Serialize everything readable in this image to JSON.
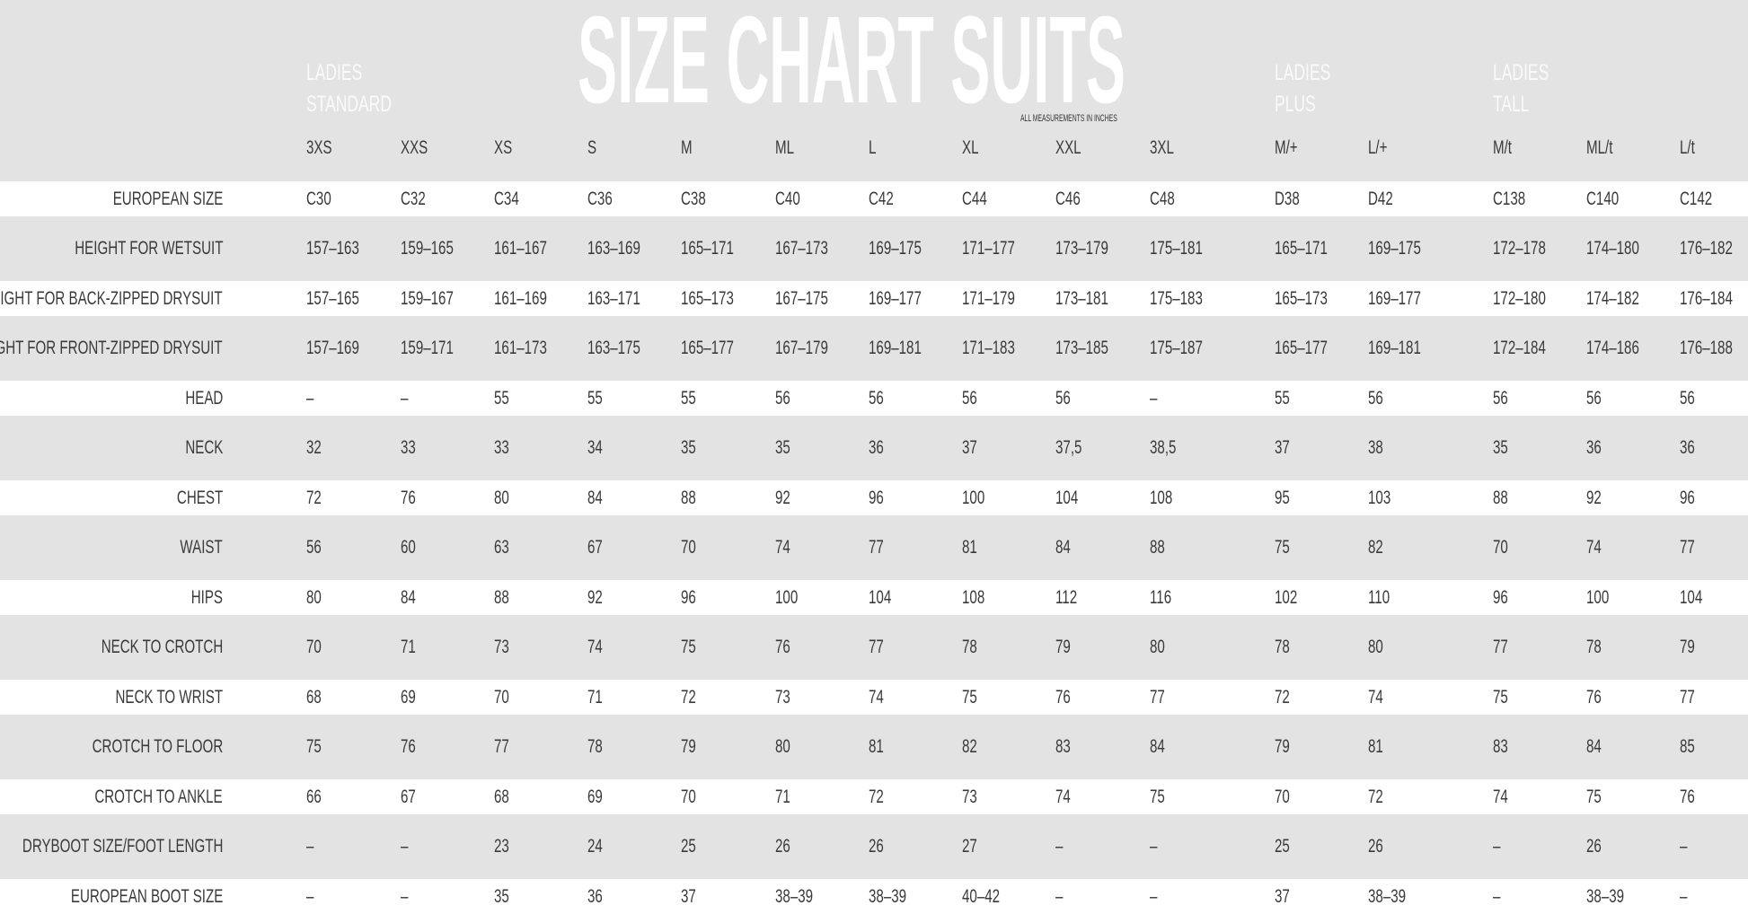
{
  "title": "SIZE CHART SUITS",
  "units_note": "ALL MEASUREMENTS IN INCHES",
  "groups": [
    {
      "line1": "LADIES",
      "line2": "STANDARD"
    },
    {
      "line1": "LADIES",
      "line2": "PLUS"
    },
    {
      "line1": "LADIES",
      "line2": "TALL"
    }
  ],
  "sizes": [
    "3XS",
    "XXS",
    "XS",
    "S",
    "M",
    "ML",
    "L",
    "XL",
    "XXL",
    "3XL",
    "M/+",
    "L/+",
    "M/t",
    "ML/t",
    "L/t"
  ],
  "rows": [
    {
      "label": "EUROPEAN SIZE",
      "values": [
        "C30",
        "C32",
        "C34",
        "C36",
        "C38",
        "C40",
        "C42",
        "C44",
        "C46",
        "C48",
        "D38",
        "D42",
        "C138",
        "C140",
        "C142"
      ]
    },
    {
      "label": "HEIGHT FOR WETSUIT",
      "values": [
        "157–163",
        "159–165",
        "161–167",
        "163–169",
        "165–171",
        "167–173",
        "169–175",
        "171–177",
        "173–179",
        "175–181",
        "165–171",
        "169–175",
        "172–178",
        "174–180",
        "176–182"
      ]
    },
    {
      "label": "HEIGHT FOR BACK-ZIPPED DRYSUIT",
      "values": [
        "157–165",
        "159–167",
        "161–169",
        "163–171",
        "165–173",
        "167–175",
        "169–177",
        "171–179",
        "173–181",
        "175–183",
        "165–173",
        "169–177",
        "172–180",
        "174–182",
        "176–184"
      ]
    },
    {
      "label": "HEIGHT FOR FRONT-ZIPPED DRYSUIT",
      "values": [
        "157–169",
        "159–171",
        "161–173",
        "163–175",
        "165–177",
        "167–179",
        "169–181",
        "171–183",
        "173–185",
        "175–187",
        "165–177",
        "169–181",
        "172–184",
        "174–186",
        "176–188"
      ]
    },
    {
      "label": "HEAD",
      "values": [
        "–",
        "–",
        "55",
        "55",
        "55",
        "56",
        "56",
        "56",
        "56",
        "–",
        "55",
        "56",
        "56",
        "56",
        "56"
      ]
    },
    {
      "label": "NECK",
      "values": [
        "32",
        "33",
        "33",
        "34",
        "35",
        "35",
        "36",
        "37",
        "37,5",
        "38,5",
        "37",
        "38",
        "35",
        "36",
        "36"
      ]
    },
    {
      "label": "CHEST",
      "values": [
        "72",
        "76",
        "80",
        "84",
        "88",
        "92",
        "96",
        "100",
        "104",
        "108",
        "95",
        "103",
        "88",
        "92",
        "96"
      ]
    },
    {
      "label": "WAIST",
      "values": [
        "56",
        "60",
        "63",
        "67",
        "70",
        "74",
        "77",
        "81",
        "84",
        "88",
        "75",
        "82",
        "70",
        "74",
        "77"
      ]
    },
    {
      "label": "HIPS",
      "values": [
        "80",
        "84",
        "88",
        "92",
        "96",
        "100",
        "104",
        "108",
        "112",
        "116",
        "102",
        "110",
        "96",
        "100",
        "104"
      ]
    },
    {
      "label": "NECK TO CROTCH",
      "values": [
        "70",
        "71",
        "73",
        "74",
        "75",
        "76",
        "77",
        "78",
        "79",
        "80",
        "78",
        "80",
        "77",
        "78",
        "79"
      ]
    },
    {
      "label": "NECK TO WRIST",
      "values": [
        "68",
        "69",
        "70",
        "71",
        "72",
        "73",
        "74",
        "75",
        "76",
        "77",
        "72",
        "74",
        "75",
        "76",
        "77"
      ]
    },
    {
      "label": "CROTCH TO FLOOR",
      "values": [
        "75",
        "76",
        "77",
        "78",
        "79",
        "80",
        "81",
        "82",
        "83",
        "84",
        "79",
        "81",
        "83",
        "84",
        "85"
      ]
    },
    {
      "label": "CROTCH TO ANKLE",
      "values": [
        "66",
        "67",
        "68",
        "69",
        "70",
        "71",
        "72",
        "73",
        "74",
        "75",
        "70",
        "72",
        "74",
        "75",
        "76"
      ]
    },
    {
      "label": "DRYBOOT SIZE/FOOT LENGTH",
      "values": [
        "–",
        "–",
        "23",
        "24",
        "25",
        "26",
        "26",
        "27",
        "–",
        "–",
        "25",
        "26",
        "–",
        "26",
        "–"
      ]
    },
    {
      "label": "EUROPEAN BOOT SIZE",
      "values": [
        "–",
        "–",
        "35",
        "36",
        "37",
        "38–39",
        "38–39",
        "40–42",
        "–",
        "–",
        "37",
        "38–39",
        "–",
        "38–39",
        "–"
      ]
    }
  ]
}
